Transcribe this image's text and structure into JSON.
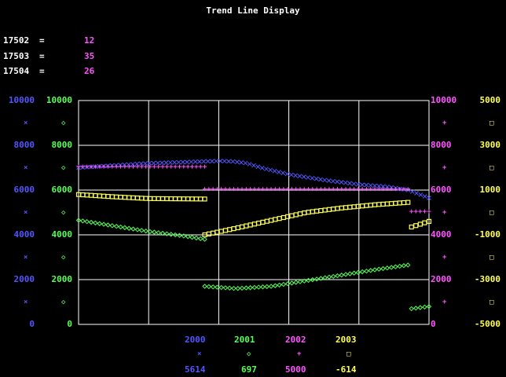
{
  "title": "Trend Line Display",
  "tags": [
    {
      "name": "17502",
      "eq": "=",
      "value": "12"
    },
    {
      "name": "17503",
      "eq": "=",
      "value": "35"
    },
    {
      "name": "17504",
      "eq": "=",
      "value": "26"
    }
  ],
  "colors": {
    "s2000": "#5555ff",
    "s2001": "#55ff55",
    "s2002": "#ff55ff",
    "s2003": "#ffff55",
    "grid": "#ffffff",
    "background": "#000000"
  },
  "axes": {
    "left_outer": {
      "color": "#5555ff",
      "labels": [
        "10000",
        "8000",
        "6000",
        "4000",
        "2000",
        "0"
      ],
      "marker": "×"
    },
    "left_inner": {
      "color": "#55ff55",
      "labels": [
        "10000",
        "8000",
        "6000",
        "4000",
        "2000",
        "0"
      ],
      "marker": "◇"
    },
    "right_inner": {
      "color": "#ff55ff",
      "labels": [
        "10000",
        "8000",
        "6000",
        "4000",
        "2000",
        "0"
      ],
      "marker": "+"
    },
    "right_outer": {
      "color": "#ffff55",
      "labels": [
        "5000",
        "3000",
        "1000",
        "-1000",
        "-3000",
        "-5000"
      ],
      "marker": "□"
    }
  },
  "legend": [
    {
      "name": "2000",
      "marker": "×",
      "value": "5614",
      "color": "#5555ff"
    },
    {
      "name": "2001",
      "marker": "◇",
      "value": "697",
      "color": "#55ff55"
    },
    {
      "name": "2002",
      "marker": "+",
      "value": "5000",
      "color": "#ff55ff"
    },
    {
      "name": "2003",
      "marker": "□",
      "value": "-614",
      "color": "#ffff55"
    }
  ],
  "chart_data": {
    "type": "line",
    "grid": true,
    "x_range": [
      0,
      100
    ],
    "series": [
      {
        "name": "2000",
        "marker": "x",
        "axis": "left_outer",
        "ylim": [
          0,
          10000
        ],
        "points": [
          [
            0,
            7000
          ],
          [
            10,
            7100
          ],
          [
            20,
            7200
          ],
          [
            30,
            7250
          ],
          [
            36,
            7280
          ],
          [
            40,
            7300
          ],
          [
            44,
            7280
          ],
          [
            48,
            7200
          ],
          [
            52,
            7000
          ],
          [
            60,
            6700
          ],
          [
            70,
            6450
          ],
          [
            80,
            6250
          ],
          [
            88,
            6150
          ],
          [
            94,
            6000
          ],
          [
            100,
            5650
          ]
        ]
      },
      {
        "name": "2001",
        "marker": "diamond",
        "axis": "left_inner",
        "ylim": [
          0,
          10000
        ],
        "segments": [
          [
            [
              0,
              4650
            ],
            [
              10,
              4400
            ],
            [
              20,
              4150
            ],
            [
              30,
              3950
            ],
            [
              36,
              3800
            ]
          ],
          [
            [
              36,
              1700
            ],
            [
              45,
              1600
            ],
            [
              55,
              1700
            ],
            [
              65,
              1950
            ],
            [
              75,
              2200
            ],
            [
              85,
              2450
            ],
            [
              94,
              2650
            ]
          ],
          [
            [
              95,
              700
            ],
            [
              100,
              800
            ]
          ]
        ]
      },
      {
        "name": "2002",
        "marker": "plus",
        "axis": "right_inner",
        "ylim": [
          0,
          10000
        ],
        "segments": [
          [
            [
              0,
              7050
            ],
            [
              36,
              7050
            ]
          ],
          [
            [
              36,
              6050
            ],
            [
              94,
              6050
            ]
          ],
          [
            [
              95,
              5050
            ],
            [
              100,
              5050
            ]
          ]
        ]
      },
      {
        "name": "2003",
        "marker": "square",
        "axis": "right_outer",
        "ylim": [
          -5000,
          5000
        ],
        "segments": [
          [
            [
              0,
              800
            ],
            [
              10,
              700
            ],
            [
              20,
              620
            ],
            [
              36,
              600
            ]
          ],
          [
            [
              36,
              -1000
            ],
            [
              45,
              -700
            ],
            [
              55,
              -350
            ],
            [
              65,
              0
            ],
            [
              75,
              200
            ],
            [
              85,
              350
            ],
            [
              94,
              450
            ]
          ],
          [
            [
              95,
              -650
            ],
            [
              100,
              -400
            ]
          ]
        ]
      }
    ]
  }
}
